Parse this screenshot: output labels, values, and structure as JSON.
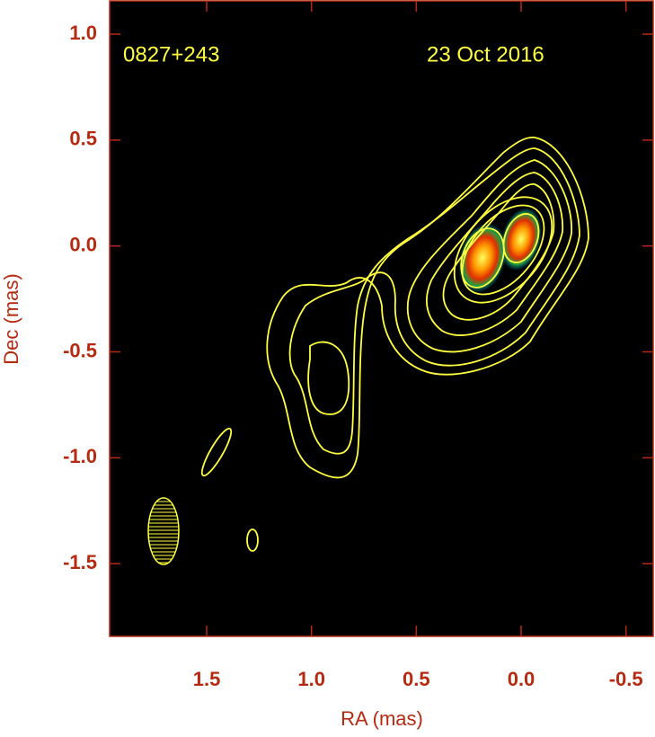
{
  "chart_data": {
    "type": "image",
    "annotations": [
      "0827+243",
      "23 Oct 2016"
    ],
    "x_label": "RA (mas)",
    "y_label": "Dec (mas)",
    "xlim": [
      1.963,
      -0.63
    ],
    "ylim": [
      -1.843,
      1.157
    ],
    "xticks": [
      1.5,
      {
        "value": 1,
        "label": "1.0"
      },
      0.5,
      {
        "value": 0,
        "label": "0.0"
      },
      -0.5
    ],
    "yticks": [
      {
        "value": 1,
        "label": "1.0"
      },
      0.5,
      {
        "value": 0,
        "label": "0.0"
      },
      -0.5,
      {
        "value": -1,
        "label": "-1.0"
      },
      -1.5
    ],
    "background": "#000000",
    "contour_color": "#ffff40"
  }
}
